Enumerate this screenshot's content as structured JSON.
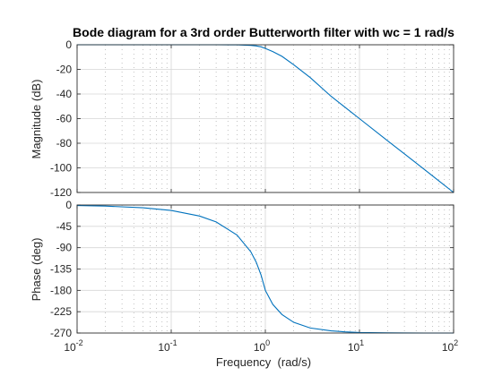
{
  "chart_data": [
    {
      "type": "line",
      "title": "Bode diagram for a 3rd order Butterworth filter with wc = 1 rad/s",
      "xlabel": "",
      "ylabel": "Magnitude (dB)",
      "xscale": "log",
      "xlim": [
        0.01,
        100
      ],
      "ylim": [
        -120,
        0
      ],
      "yticks": [
        0,
        -20,
        -40,
        -60,
        -80,
        -100,
        -120
      ],
      "grid": true,
      "series": [
        {
          "color": "#0072bd",
          "x": [
            0.01,
            0.02,
            0.05,
            0.1,
            0.2,
            0.3,
            0.5,
            0.7,
            0.8,
            0.9,
            1.0,
            1.2,
            1.5,
            2,
            3,
            5,
            7,
            10,
            20,
            30,
            50,
            70,
            100
          ],
          "y": [
            0,
            0,
            0,
            0,
            0,
            0,
            -0.07,
            -0.51,
            -0.97,
            -1.69,
            -3.01,
            -5.56,
            -9.36,
            -16.2,
            -26.7,
            -41.9,
            -50.7,
            -60.0,
            -78.1,
            -88.6,
            -101.9,
            -110.7,
            -120.0
          ]
        }
      ]
    },
    {
      "type": "line",
      "xlabel": "Frequency  (rad/s)",
      "ylabel": "Phase (deg)",
      "xscale": "log",
      "xlim": [
        0.01,
        100
      ],
      "ylim": [
        -270,
        0
      ],
      "xticks": [
        0.01,
        0.1,
        1,
        10,
        100
      ],
      "yticks": [
        0,
        -45,
        -90,
        -135,
        -180,
        -225,
        -270
      ],
      "grid": true,
      "series": [
        {
          "color": "#0072bd",
          "x": [
            0.01,
            0.02,
            0.05,
            0.1,
            0.2,
            0.3,
            0.5,
            0.7,
            0.8,
            0.9,
            1.0,
            1.2,
            1.5,
            2,
            3,
            5,
            7,
            10,
            20,
            30,
            50,
            70,
            100
          ],
          "y": [
            -1.1,
            -2.3,
            -5.7,
            -11.5,
            -23.3,
            -35.6,
            -63.4,
            -98.4,
            -120.5,
            -147.5,
            -180,
            -209.6,
            -230.9,
            -247.4,
            -259.4,
            -265.4,
            -267.5,
            -268.9,
            -269.7,
            -269.9,
            -270,
            -270,
            -270
          ]
        }
      ]
    }
  ],
  "tick_labels": {
    "mag_y": [
      "0",
      "-20",
      "-40",
      "-60",
      "-80",
      "-100",
      "-120"
    ],
    "phase_y": [
      "0",
      "-45",
      "-90",
      "-135",
      "-180",
      "-225",
      "-270"
    ],
    "x_base": "10",
    "x_exponents": [
      "-2",
      "-1",
      "0",
      "1",
      "2"
    ]
  }
}
